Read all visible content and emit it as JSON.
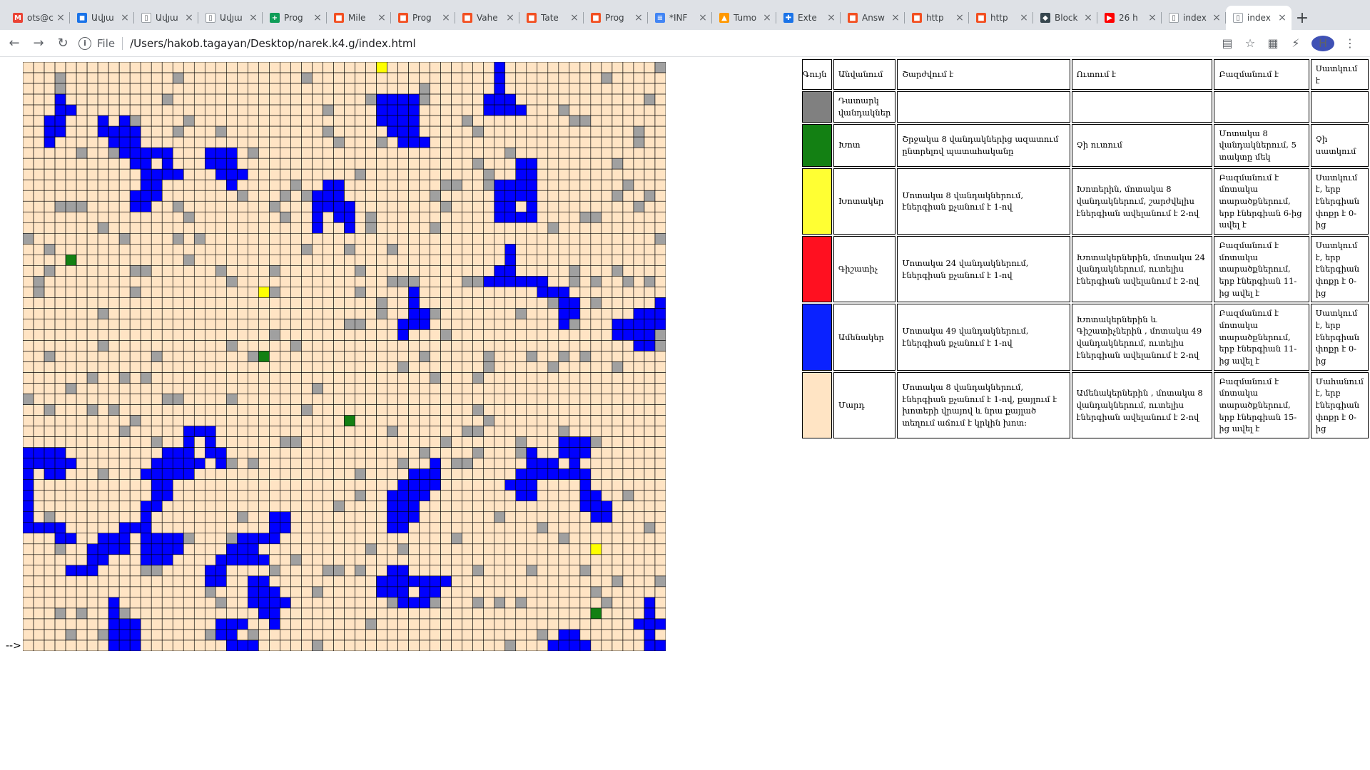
{
  "browser": {
    "tabs": [
      {
        "title": "ots@c",
        "fav": "gmail-icon",
        "color": "#ea4335",
        "glyph": "M"
      },
      {
        "title": "Ավյա",
        "fav": "contacts-icon",
        "color": "#1a73e8",
        "glyph": "◼"
      },
      {
        "title": "Ավյա",
        "fav": "document-icon",
        "color": "#ffffff",
        "glyph": "▯"
      },
      {
        "title": "Ավյա",
        "fav": "document-icon",
        "color": "#ffffff",
        "glyph": "▯"
      },
      {
        "title": "Prog",
        "fav": "sheets-icon",
        "color": "#0f9d58",
        "glyph": "+"
      },
      {
        "title": "Mile",
        "fav": "microsoft-icon",
        "color": "#f25022",
        "glyph": "■"
      },
      {
        "title": "Prog",
        "fav": "microsoft-icon",
        "color": "#f25022",
        "glyph": "■"
      },
      {
        "title": "Vahe",
        "fav": "microsoft-icon",
        "color": "#f25022",
        "glyph": "■"
      },
      {
        "title": "Tate",
        "fav": "microsoft-icon",
        "color": "#f25022",
        "glyph": "■"
      },
      {
        "title": "Prog",
        "fav": "microsoft-icon",
        "color": "#f25022",
        "glyph": "■"
      },
      {
        "title": "*INF",
        "fav": "docs-icon",
        "color": "#4285f4",
        "glyph": "≡"
      },
      {
        "title": "Tumo",
        "fav": "tumo-icon",
        "color": "#ff9800",
        "glyph": "▲"
      },
      {
        "title": "Exte",
        "fav": "puzzle-icon",
        "color": "#1a73e8",
        "glyph": "✚"
      },
      {
        "title": "Answ",
        "fav": "microsoft-icon",
        "color": "#f25022",
        "glyph": "■"
      },
      {
        "title": "http",
        "fav": "microsoft-icon",
        "color": "#f25022",
        "glyph": "■"
      },
      {
        "title": "http",
        "fav": "microsoft-icon",
        "color": "#f25022",
        "glyph": "■"
      },
      {
        "title": "Block",
        "fav": "blockchain-icon",
        "color": "#37474f",
        "glyph": "◆"
      },
      {
        "title": "26 h",
        "fav": "youtube-icon",
        "color": "#ff0000",
        "glyph": "▶"
      },
      {
        "title": "index",
        "fav": "document-icon",
        "color": "#ffffff",
        "glyph": "▯"
      },
      {
        "title": "index",
        "fav": "document-icon",
        "color": "#ffffff",
        "glyph": "▯",
        "active": true
      }
    ],
    "address_scheme": "File",
    "address_url": "/Users/hakob.tagayan/Desktop/narek.k4.g/index.html",
    "avatar_letter": "H"
  },
  "grid": {
    "cols": 60,
    "rows": 55,
    "colors": {
      "empty": "#ffe4c4",
      "grass": "#138013",
      "grassEater": "#ffff00",
      "predator": "#ff0000",
      "hunter": "#0000ff",
      "stone": "#a0a0a0"
    }
  },
  "arrow_text": "-->",
  "legend": {
    "header": {
      "color": "Գույն",
      "name": "Անվանում",
      "move": "Շարժվում է",
      "eat": "Ուտում է",
      "multiply": "Բազմանում է",
      "die": "Սատկում է"
    },
    "rows": [
      {
        "swatch": "#808080",
        "name": "Դատարկ վանդակներ",
        "move": "",
        "eat": "",
        "multiply": "",
        "die": ""
      },
      {
        "swatch": "#138013",
        "name": "Խոտ",
        "move": "Շրջակա 8 վանդակներից ազատում ընտրելով պատահականը",
        "eat": "Չի ուտում",
        "multiply": "Մոտակա 8 վանդակներում, 5 տակտը մեկ",
        "die": "Չի սատկում"
      },
      {
        "swatch": "#ffff33",
        "name": "Խոտակեր",
        "move": "Մոտակա 8 վանդակներում, էներգիան քչանում է 1-ով",
        "eat": "Խոտերին, մոտակա 8 վանդակներում, շարժվելիս էներգիան ավելանում է 2-ով",
        "multiply": "Բազմանում է մոտակա տարածքներում, երբ էներգիան 6-ից ավել է",
        "die": "Սատկում է, երբ էներգիան փոքր է 0-ից"
      },
      {
        "swatch": "#ff1020",
        "name": "Գիշատիչ",
        "move": "Մոտակա 24 վանդակներում, էներգիան քչանում է 1-ով",
        "eat": "Խոտակերներին, մոտակա 24 վանդակներում, ուտելիս էներգիան ավելանում է 2-ով",
        "multiply": "Բազմանում է մոտակա տարածքներում, երբ էներգիան 11-ից ավել է",
        "die": "Սատկում է, երբ էներգիան փոքր է 0-ից"
      },
      {
        "swatch": "#0a22ff",
        "name": "Ամենակեր",
        "move": "Մոտակա 49 վանդակներում, էներգիան քչանում է 1-ով",
        "eat": "Խոտակերներին և Գիշատիչներին , մոտակա 49 վանդակներում, ուտելիս էներգիան ավելանում է 2-ով",
        "multiply": "Բազմանում է մոտակա տարածքներում, երբ էներգիան 11-ից ավել է",
        "die": "Սատկում է, երբ էներգիան փոքր է 0-ից"
      },
      {
        "swatch": "#ffe4c4",
        "name": "Մարդ",
        "move": "Մոտակա 8 վանդակներում, էներգիան քչանում է 1-ով, քայլում է խոտերի վրայով և նրա քայլած տեղում աճում է կրկին խոտ:",
        "eat": "Ամենակերներին , մոտակա 8 վանդակներում, ուտելիս էներգիան ավելանում է 2-ով",
        "multiply": "Բազմանում է մոտակա տարածքներում, երբ էներգիան 15-ից ավել է",
        "die": "Մահանում է, երբ էներգիան փոքր է 0-ից"
      }
    ]
  }
}
